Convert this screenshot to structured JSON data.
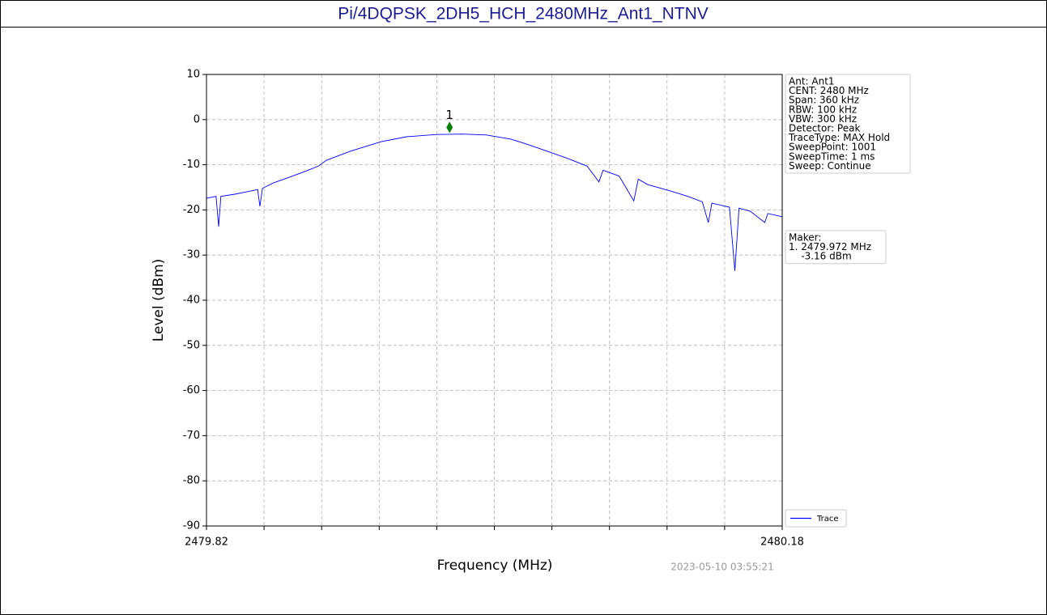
{
  "title": "Pi/4DQPSK_2DH5_HCH_2480MHz_Ant1_NTNV",
  "chart_data": {
    "type": "line",
    "xlabel": "Frequency (MHz)",
    "ylabel": "Level (dBm)",
    "xlim": [
      2479.82,
      2480.18
    ],
    "xticks": [
      2479.82,
      2480.18
    ],
    "xminor_ticks": [
      2479.856,
      2479.892,
      2479.928,
      2479.964,
      2480.0,
      2480.036,
      2480.072,
      2480.108,
      2480.144
    ],
    "ylim": [
      -90,
      10
    ],
    "yticks": [
      -90,
      -80,
      -70,
      -60,
      -50,
      -40,
      -30,
      -20,
      -10,
      0,
      10
    ],
    "grid": true,
    "legend": "lower right",
    "x": [
      2479.82,
      2479.826,
      2479.8276,
      2479.829,
      2479.838,
      2479.845,
      2479.852,
      2479.8534,
      2479.855,
      2479.862,
      2479.87,
      2479.88,
      2479.89,
      2479.895,
      2479.91,
      2479.929,
      2479.945,
      2479.964,
      2479.98,
      2479.995,
      2480.01,
      2480.02,
      2480.033,
      2480.045,
      2480.058,
      2480.0654,
      2480.068,
      2480.078,
      2480.0872,
      2480.09,
      2480.096,
      2480.11,
      2480.121,
      2480.13,
      2480.1338,
      2480.136,
      2480.147,
      2480.1504,
      2480.153,
      2480.16,
      2480.1691,
      2480.171,
      2480.18
    ],
    "series": [
      {
        "name": "Trace",
        "color": "#0000ff",
        "values": [
          -17.4,
          -17.0,
          -23.7,
          -17.0,
          -16.5,
          -16.0,
          -15.5,
          -19.2,
          -15.2,
          -14.0,
          -13.0,
          -11.7,
          -10.3,
          -9.0,
          -7.0,
          -4.9,
          -3.8,
          -3.3,
          -3.2,
          -3.4,
          -4.3,
          -5.4,
          -7.0,
          -8.5,
          -10.3,
          -13.8,
          -11.2,
          -12.5,
          -18.0,
          -13.2,
          -14.4,
          -15.8,
          -17.0,
          -18.2,
          -22.8,
          -18.5,
          -19.4,
          -33.5,
          -19.6,
          -20.3,
          -22.8,
          -20.8,
          -21.5
        ]
      }
    ],
    "marker": {
      "label": "1",
      "x": 2479.972,
      "y": -3.16,
      "color": "#008000"
    },
    "info": [
      "Ant: Ant1",
      "CENT: 2480 MHz",
      "Span: 360 kHz",
      "RBW: 100 kHz",
      "VBW: 300 kHz",
      "Detector: Peak",
      "TraceType: MAX Hold",
      "SweepPoint: 1001",
      "SweepTime: 1 ms",
      "Sweep: Continue"
    ],
    "marker_info": [
      "Maker:",
      "1. 2479.972 MHz",
      "    -3.16 dBm"
    ],
    "timestamp": "2023-05-10 03:55:21"
  }
}
